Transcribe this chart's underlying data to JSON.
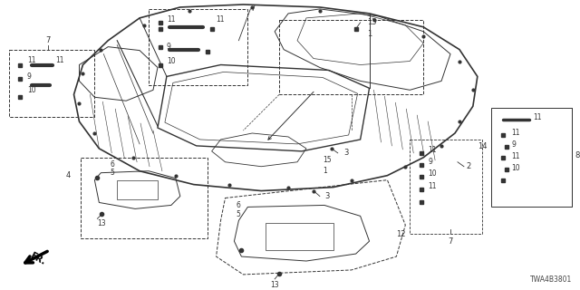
{
  "diagram_id": "TWA4B3801",
  "bg_color": "#ffffff",
  "lc": "#333333",
  "fig_width": 6.4,
  "fig_height": 3.2,
  "dpi": 100
}
